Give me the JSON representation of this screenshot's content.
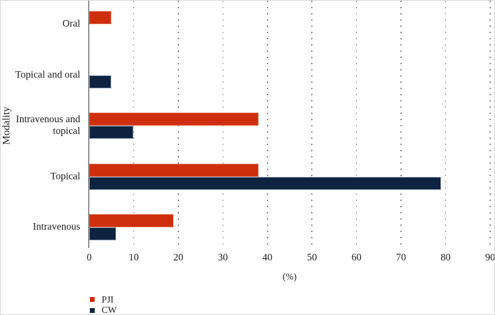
{
  "chart_data": {
    "type": "bar",
    "orientation": "horizontal",
    "title": "",
    "xlabel": "(%)",
    "ylabel": "Modality",
    "xlim": [
      0,
      90
    ],
    "xticks": [
      0,
      10,
      20,
      30,
      40,
      50,
      60,
      70,
      80,
      90
    ],
    "grid": "vertical-dotted",
    "grid_color": "#8d8d8d",
    "legend_position": "bottom-left",
    "categories": [
      "Oral",
      "Topical and oral",
      "Intravenous and topical",
      "Topical",
      "Intravenous"
    ],
    "series": [
      {
        "name": "PJI",
        "color": "#cf2e0c",
        "values": [
          5,
          0,
          38,
          38,
          19
        ]
      },
      {
        "name": "CW",
        "color": "#0e2340",
        "values": [
          0,
          5,
          10,
          79,
          6
        ]
      }
    ]
  }
}
